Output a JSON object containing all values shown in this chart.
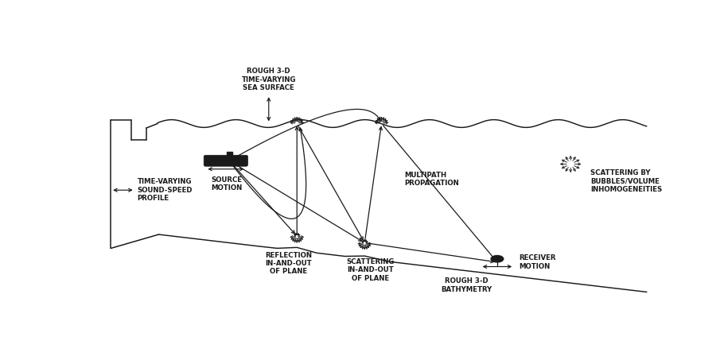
{
  "bg_color": "#ffffff",
  "lc": "#1a1a1a",
  "fig_width": 9.15,
  "fig_height": 4.53,
  "dpi": 100,
  "labels": {
    "rough_surface": "ROUGH 3-D\nTIME-VARYING\nSEA SURFACE",
    "source_motion": "SOURCE\nMOTION",
    "time_varying": "TIME-VARYING\nSOUND-SPEED\nPROFILE",
    "multipath": "MULTIPATH\nPROPAGATION",
    "scattering_bubbles": "SCATTERING BY\nBUBBLES/VOLUME\nINHOMOGENEITIES",
    "reflection": "REFLECTION\nIN-AND-OUT\nOF PLANE",
    "scattering_bottom": "SCATTERING\nIN-AND-OUT\nOF PLANE",
    "receiver_motion": "RECEIVER\nMOTION",
    "rough_bathymetry": "ROUGH 3-D\nBATHYMETRY"
  },
  "fs": 6.2,
  "fw": "bold",
  "ff": "DejaVu Sans"
}
